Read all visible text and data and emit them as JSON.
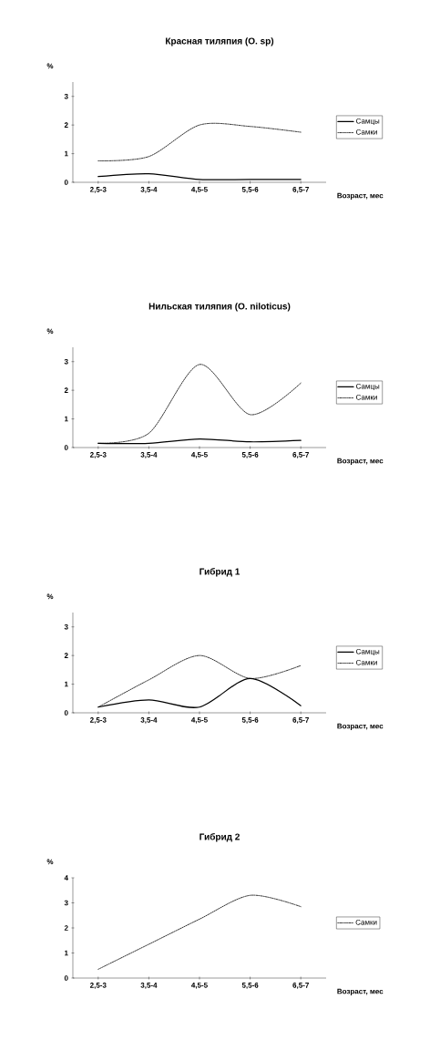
{
  "chart_data": [
    {
      "type": "line",
      "title": "Красная тиляпия (O. sp)",
      "ylabel": "%",
      "xlabel": "Возраст, мес",
      "categories": [
        "2,5-3",
        "3,5-4",
        "4,5-5",
        "5,5-6",
        "6,5-7"
      ],
      "ylim": [
        0,
        3.5
      ],
      "yticks": [
        0,
        1,
        2,
        3
      ],
      "legend": "right",
      "series": [
        {
          "name": "Самцы",
          "color": "#000000",
          "line_style": "solid",
          "values": [
            0.2,
            0.3,
            0.1,
            0.1,
            0.1
          ]
        },
        {
          "name": "Самки",
          "color": "#000000",
          "line_style": "dotted",
          "values": [
            0.75,
            0.9,
            2.0,
            1.95,
            1.75
          ]
        }
      ]
    },
    {
      "type": "line",
      "title": "Нильская тиляпия (O. niloticus)",
      "ylabel": "%",
      "xlabel": "Возраст, мес",
      "categories": [
        "2,5-3",
        "3,5-4",
        "4,5-5",
        "5,5-6",
        "6,5-7"
      ],
      "ylim": [
        0,
        3.5
      ],
      "yticks": [
        0,
        1,
        2,
        3
      ],
      "legend": "right",
      "series": [
        {
          "name": "Самцы",
          "color": "#000000",
          "line_style": "solid",
          "values": [
            0.15,
            0.15,
            0.3,
            0.2,
            0.25
          ]
        },
        {
          "name": "Самки",
          "color": "#000000",
          "line_style": "dotted",
          "values": [
            0.15,
            0.5,
            2.9,
            1.15,
            2.25
          ]
        }
      ]
    },
    {
      "type": "line",
      "title": "Гибрид 1",
      "ylabel": "%",
      "xlabel": "Возраст, мес",
      "categories": [
        "2,5-3",
        "3,5-4",
        "4,5-5",
        "5,5-6",
        "6,5-7"
      ],
      "ylim": [
        0,
        3.5
      ],
      "yticks": [
        0,
        1,
        2,
        3
      ],
      "legend": "right",
      "series": [
        {
          "name": "Самцы",
          "color": "#000000",
          "line_style": "solid",
          "values": [
            0.2,
            0.45,
            0.2,
            1.2,
            0.25
          ]
        },
        {
          "name": "Самки",
          "color": "#000000",
          "line_style": "dotted",
          "values": [
            0.2,
            1.15,
            2.0,
            1.2,
            1.65
          ]
        }
      ]
    },
    {
      "type": "line",
      "title": "Гибрид 2",
      "ylabel": "%",
      "xlabel": "Возраст, мес",
      "categories": [
        "2,5-3",
        "3,5-4",
        "4,5-5",
        "5,5-6",
        "6,5-7"
      ],
      "ylim": [
        0,
        4
      ],
      "yticks": [
        0,
        1,
        2,
        3,
        4
      ],
      "legend": "right",
      "series": [
        {
          "name": "Самки",
          "color": "#000000",
          "line_style": "dotted",
          "values": [
            0.35,
            1.35,
            2.35,
            3.3,
            2.85
          ]
        }
      ]
    }
  ]
}
